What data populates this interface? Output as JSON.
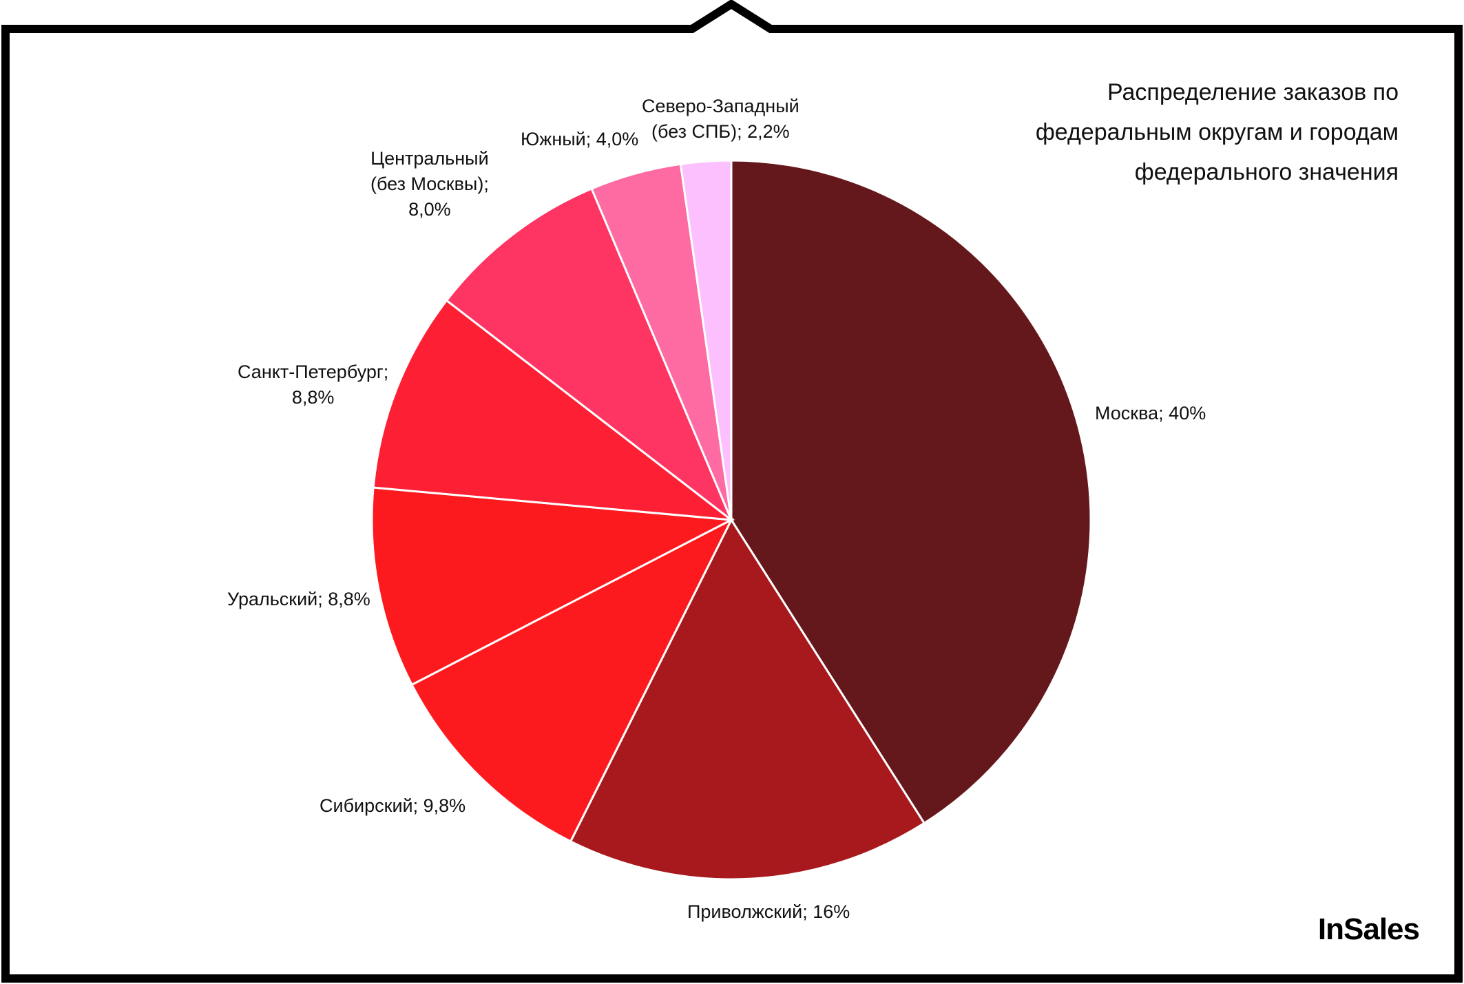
{
  "chart_data": {
    "type": "pie",
    "title": [
      "Распределение заказов по",
      "федеральным округам и городам",
      "федерального значения"
    ],
    "slices": [
      {
        "name": "Москва",
        "value": 40,
        "label": [
          "Москва; 40%"
        ],
        "color": "#64181c"
      },
      {
        "name": "Приволжский",
        "value": 16,
        "label": [
          "Приволжский; 16%"
        ],
        "color": "#a8191d"
      },
      {
        "name": "Сибирский",
        "value": 9.8,
        "label": [
          "Сибирский; 9,8%"
        ],
        "color": "#fd1a1e"
      },
      {
        "name": "Уральский",
        "value": 8.8,
        "label": [
          "Уральский; 8,8%"
        ],
        "color": "#fd1a1e"
      },
      {
        "name": "Санкт-Петербург",
        "value": 8.8,
        "label": [
          "Санкт-Петербург;",
          "8,8%"
        ],
        "color": "#fd1f33"
      },
      {
        "name": "Центральный (без Москвы)",
        "value": 8.0,
        "label": [
          "Центральный",
          "(без Москвы);",
          "8,0%"
        ],
        "color": "#fe3563"
      },
      {
        "name": "Южный",
        "value": 4.0,
        "label": [
          "Южный; 4,0%"
        ],
        "color": "#fe6ba3"
      },
      {
        "name": "Северо-Западный (без СПБ)",
        "value": 2.2,
        "label": [
          "Северо-Западный",
          "(без СПБ); 2,2%"
        ],
        "color": "#fdc0fe"
      }
    ]
  },
  "logo": {
    "text": "InSales"
  }
}
